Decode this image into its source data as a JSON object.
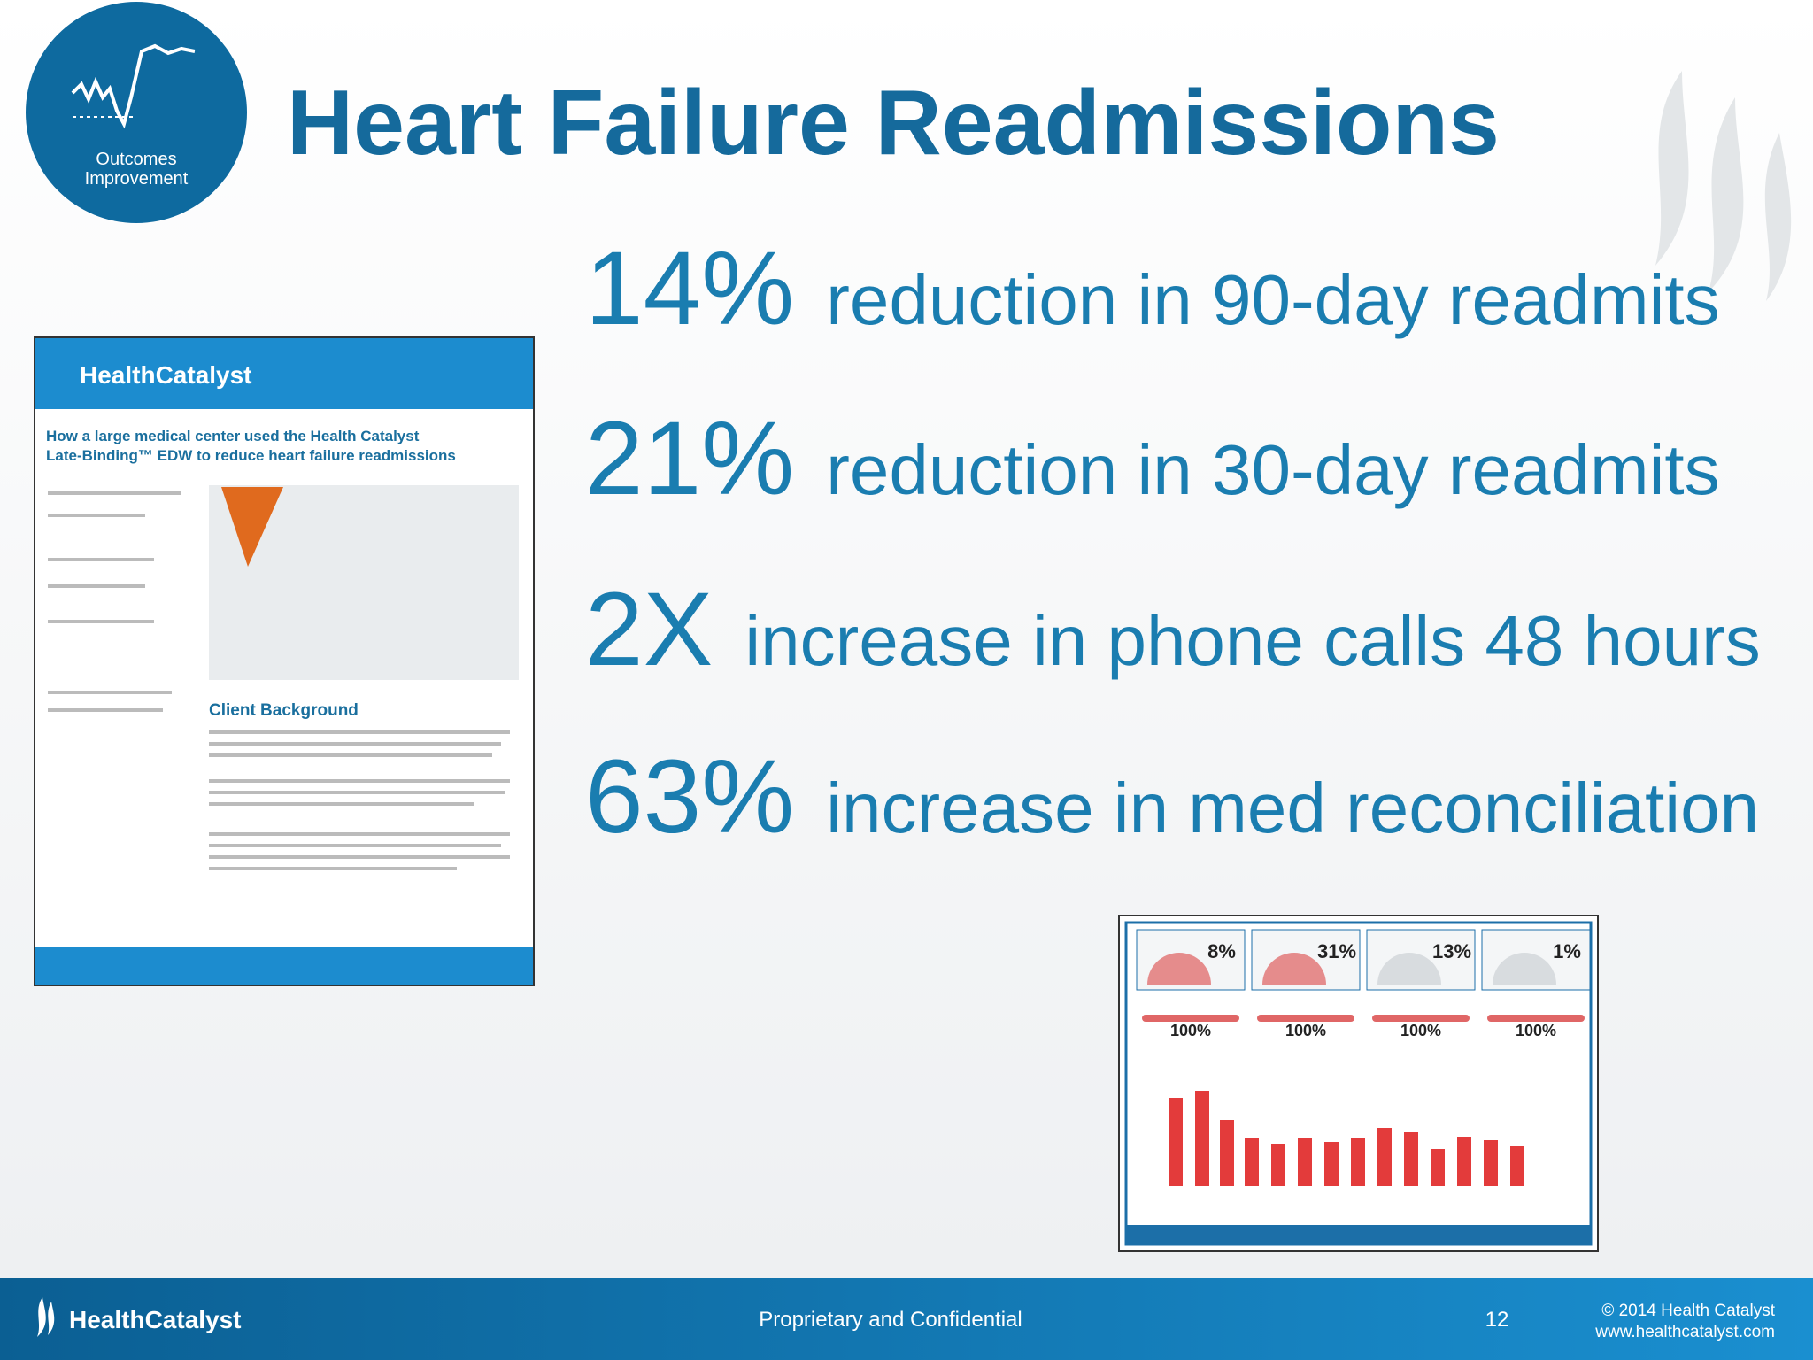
{
  "badge": {
    "line1": "Outcomes",
    "line2": "Improvement"
  },
  "title": "Heart Failure Readmissions",
  "stats": [
    {
      "figure": "14%",
      "text": "reduction in 90-day readmits"
    },
    {
      "figure": "21%",
      "text": "reduction in 30-day readmits"
    },
    {
      "figure": "2X",
      "text": "increase in phone calls 48 hours"
    },
    {
      "figure": "63%",
      "text": "increase in med reconciliation"
    }
  ],
  "case_study": {
    "brand": "HealthCatalyst",
    "headline_line1": "How a large medical center used the Health Catalyst",
    "headline_line2": "Late-Binding™ EDW to reduce heart failure readmissions",
    "section": "Client Background"
  },
  "dashboard": {
    "gauges": [
      "8%",
      "31%",
      "13%",
      "1%"
    ],
    "rates": [
      "100%",
      "100%",
      "100%",
      "100%"
    ]
  },
  "footer": {
    "brand": "HealthCatalyst",
    "center": "Proprietary and Confidential",
    "page": "12",
    "copyright": "© 2014 Health Catalyst",
    "website": "www.healthcatalyst.com"
  }
}
